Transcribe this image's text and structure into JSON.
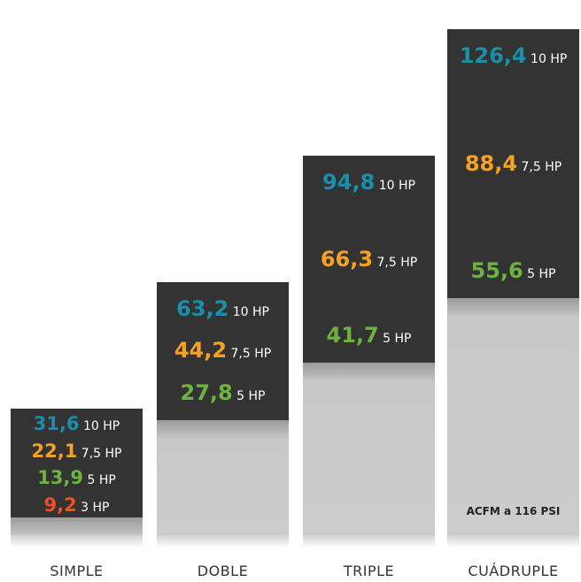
{
  "chart_data": {
    "type": "bar",
    "categories": [
      "SIMPLE",
      "DOBLE",
      "TRIPLE",
      "CUÁDRUPLE"
    ],
    "series": [
      {
        "name": "10 HP",
        "color": "#1a8fab",
        "values": [
          31.6,
          63.2,
          94.8,
          126.4
        ]
      },
      {
        "name": "7,5 HP",
        "color": "#f5a123",
        "values": [
          22.1,
          44.2,
          66.3,
          88.4
        ]
      },
      {
        "name": "5 HP",
        "color": "#6cb33f",
        "values": [
          13.9,
          27.8,
          41.7,
          55.6
        ]
      },
      {
        "name": "3 HP",
        "color": "#f04e24",
        "values": [
          9.2,
          null,
          null,
          null
        ]
      }
    ],
    "bars": [
      {
        "category": "SIMPLE",
        "entries": [
          {
            "value": "31,6",
            "unit": "10 HP",
            "series": 0
          },
          {
            "value": "22,1",
            "unit": "7,5 HP",
            "series": 1
          },
          {
            "value": "13,9",
            "unit": "5 HP",
            "series": 2
          },
          {
            "value": "9,2",
            "unit": "3 HP",
            "series": 3
          }
        ]
      },
      {
        "category": "DOBLE",
        "entries": [
          {
            "value": "63,2",
            "unit": "10 HP",
            "series": 0
          },
          {
            "value": "44,2",
            "unit": "7,5 HP",
            "series": 1
          },
          {
            "value": "27,8",
            "unit": "5 HP",
            "series": 2
          }
        ]
      },
      {
        "category": "TRIPLE",
        "entries": [
          {
            "value": "94,8",
            "unit": "10 HP",
            "series": 0
          },
          {
            "value": "66,3",
            "unit": "7,5 HP",
            "series": 1
          },
          {
            "value": "41,7",
            "unit": "5 HP",
            "series": 2
          }
        ]
      },
      {
        "category": "CUÁDRUPLE",
        "entries": [
          {
            "value": "126,4",
            "unit": "10 HP",
            "series": 0
          },
          {
            "value": "88,4",
            "unit": "7,5 HP",
            "series": 1
          },
          {
            "value": "55,6",
            "unit": "5 HP",
            "series": 2
          }
        ]
      }
    ],
    "annotation": "ACFM a 116 PSI",
    "ylim": [
      0,
      132
    ],
    "grid": false,
    "legend": "none"
  },
  "colors": {
    "bar_dark": "#333333",
    "bar_base": "#cccccc",
    "unit_text": "#ffffff",
    "category_text": "#333333"
  }
}
